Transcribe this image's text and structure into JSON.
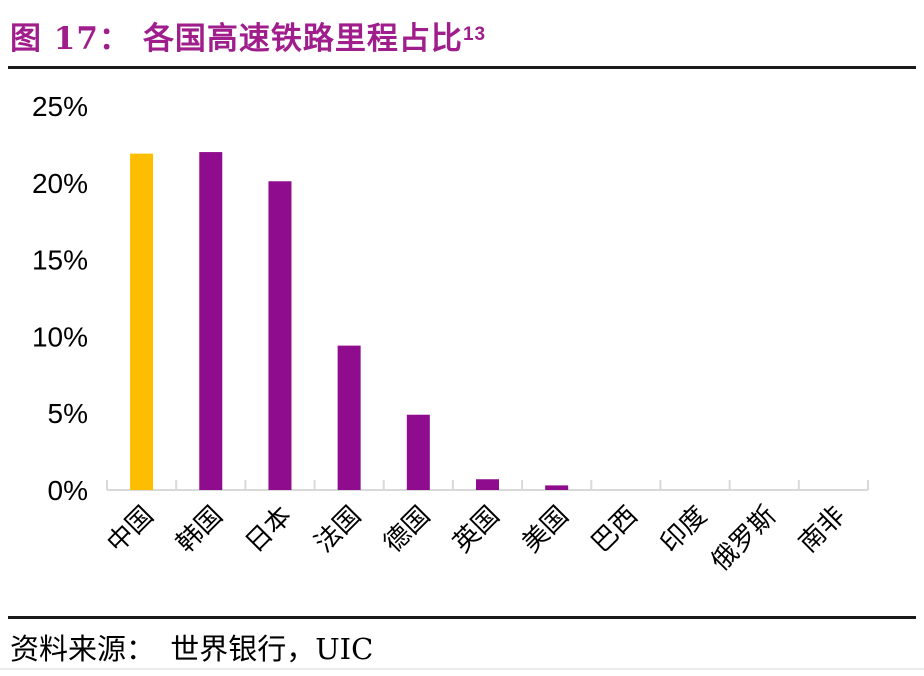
{
  "title": {
    "figure_label": "图 17：",
    "text": "各国高速铁路里程占比",
    "superscript": "13"
  },
  "source": {
    "label": "资料来源：",
    "text": "世界银行，UIC"
  },
  "colors": {
    "title_text": "#A01E8C",
    "bar_default": "#8E0C8D",
    "bar_highlight": "#FDBD01",
    "axis_line": "#D9D9D9",
    "label_text": "#000000",
    "rule_dark": "#1a1a1a",
    "rule_light": "#ececec"
  },
  "chart_data": {
    "type": "bar",
    "title": "各国高速铁路里程占比",
    "xlabel": "",
    "ylabel": "",
    "categories": [
      "中国",
      "韩国",
      "日本",
      "法国",
      "德国",
      "英国",
      "美国",
      "巴西",
      "印度",
      "俄罗斯",
      "南非"
    ],
    "values": [
      21.9,
      22.0,
      20.1,
      9.4,
      4.9,
      0.7,
      0.3,
      0,
      0,
      0,
      0
    ],
    "bar_colors": [
      "#FDBD01",
      "#8E0C8D",
      "#8E0C8D",
      "#8E0C8D",
      "#8E0C8D",
      "#8E0C8D",
      "#8E0C8D",
      "#8E0C8D",
      "#8E0C8D",
      "#8E0C8D",
      "#8E0C8D"
    ],
    "ylim": [
      0,
      25
    ],
    "ytick_step": 5,
    "ytick_labels": [
      "0%",
      "5%",
      "10%",
      "15%",
      "20%",
      "25%"
    ],
    "grid": false,
    "legend": "none",
    "category_label_rotation": -45
  }
}
